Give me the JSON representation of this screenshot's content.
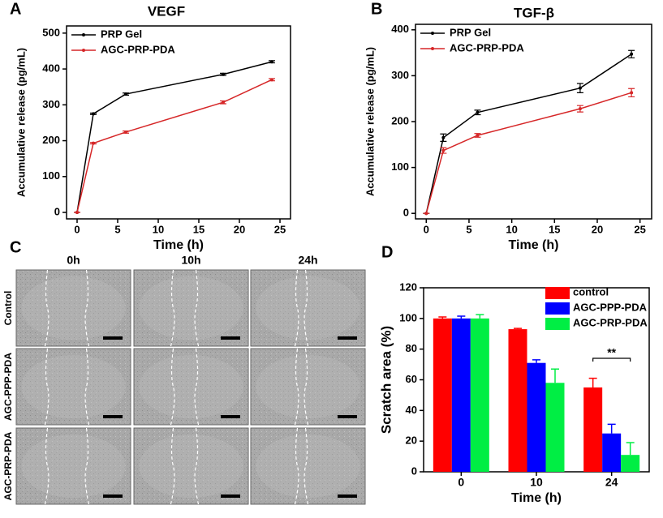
{
  "chart_data": [
    {
      "type": "line",
      "panel": "A",
      "title": "VEGF",
      "x_label": "Time (h)",
      "y_label": "Accumulative release (pg/mL)",
      "x": [
        0,
        2,
        6,
        18,
        24
      ],
      "series": [
        {
          "name": "PRP Gel",
          "color": "#000000",
          "values": [
            0,
            275,
            330,
            385,
            420
          ],
          "errors": [
            0,
            2,
            3,
            3,
            3
          ]
        },
        {
          "name": "AGC-PRP-PDA",
          "color": "#d62728",
          "values": [
            0,
            193,
            224,
            307,
            370
          ],
          "errors": [
            0,
            2,
            3,
            4,
            3
          ]
        }
      ],
      "xlim": [
        -1.3,
        26.3
      ],
      "xticks": [
        0,
        5,
        10,
        15,
        20,
        25
      ],
      "ylim": [
        -18,
        520
      ],
      "yticks": [
        0,
        100,
        200,
        300,
        400,
        500
      ],
      "legend": "upper left"
    },
    {
      "type": "line",
      "panel": "B",
      "title": "TGF-β",
      "x_label": "Time (h)",
      "y_label": "Accumulative release (pg/mL)",
      "x": [
        0,
        2,
        6,
        18,
        24
      ],
      "series": [
        {
          "name": "PRP Gel",
          "color": "#000000",
          "values": [
            0,
            165,
            220,
            273,
            347
          ],
          "errors": [
            0,
            8,
            5,
            10,
            8
          ]
        },
        {
          "name": "AGC-PRP-PDA",
          "color": "#d62728",
          "values": [
            0,
            137,
            170,
            228,
            263
          ],
          "errors": [
            0,
            6,
            4,
            7,
            9
          ]
        }
      ],
      "xlim": [
        -1.26,
        26.36
      ],
      "xticks": [
        0,
        5,
        10,
        15,
        20,
        25
      ],
      "ylim": [
        -12,
        412
      ],
      "yticks": [
        0,
        100,
        200,
        300,
        400
      ],
      "legend": "upper left"
    },
    {
      "type": "bar",
      "panel": "D",
      "x_label": "Time (h)",
      "y_label": "Scratch area (%)",
      "categories": [
        "0",
        "10",
        "24"
      ],
      "series": [
        {
          "name": "control",
          "color": "#ff0000",
          "values": [
            100,
            93,
            55
          ],
          "errors": [
            1,
            0.5,
            6
          ]
        },
        {
          "name": "AGC-PPP-PDA",
          "color": "#0000ff",
          "values": [
            100,
            71,
            25
          ],
          "errors": [
            1.5,
            2,
            6
          ]
        },
        {
          "name": "AGC-PRP-PDA",
          "color": "#00ee44",
          "values": [
            100,
            58,
            11
          ],
          "errors": [
            2.5,
            9,
            8
          ]
        }
      ],
      "ylim": [
        0,
        120
      ],
      "yticks": [
        0,
        20,
        40,
        60,
        80,
        100,
        120
      ],
      "legend": "upper right",
      "annotation": "**"
    }
  ],
  "microscopy": {
    "panel": "C",
    "columns": [
      "0h",
      "10h",
      "24h"
    ],
    "rows": [
      "Control",
      "AGC-PPP-PDA",
      "AGC-PRP-PDA"
    ]
  }
}
